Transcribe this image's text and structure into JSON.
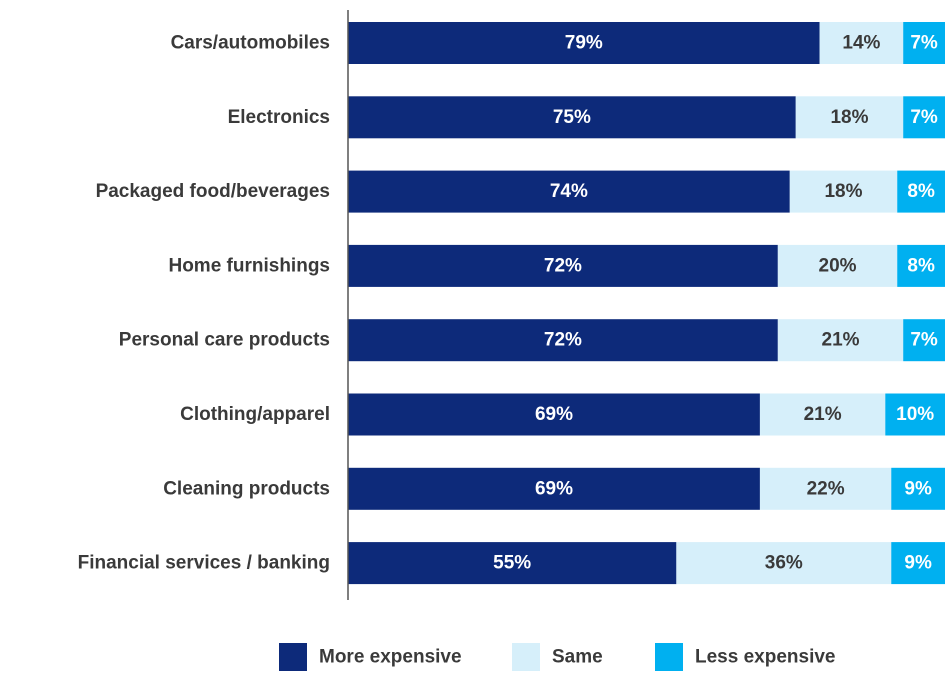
{
  "chart_data": {
    "type": "bar",
    "orientation": "horizontal",
    "stacked": true,
    "categories": [
      "Cars/automobiles",
      "Electronics",
      "Packaged food/beverages",
      "Home furnishings",
      "Personal care products",
      "Clothing/apparel",
      "Cleaning products",
      "Financial services / banking"
    ],
    "series": [
      {
        "name": "More expensive",
        "color": "#0d2a7a",
        "label_color": "#ffffff",
        "values": [
          79,
          75,
          74,
          72,
          72,
          69,
          69,
          55
        ],
        "labels": [
          "79%",
          "75%",
          "74%",
          "72%",
          "72%",
          "69%",
          "69%",
          "55%"
        ]
      },
      {
        "name": "Same",
        "color": "#d6effa",
        "label_color": "#3a3a3a",
        "values": [
          14,
          18,
          18,
          20,
          21,
          21,
          22,
          36
        ],
        "labels": [
          "14%",
          "18%",
          "18%",
          "20%",
          "21%",
          "21%",
          "22%",
          "36%"
        ]
      },
      {
        "name": "Less expensive",
        "color": "#00b0f0",
        "label_color": "#ffffff",
        "values": [
          7,
          7,
          8,
          8,
          7,
          10,
          9,
          9
        ],
        "labels": [
          "7%",
          "7%",
          "8%",
          "8%",
          "7%",
          "10%",
          "9%",
          "9%"
        ]
      }
    ],
    "xlim": [
      0,
      100
    ],
    "grid": false,
    "legend_position": "bottom"
  }
}
